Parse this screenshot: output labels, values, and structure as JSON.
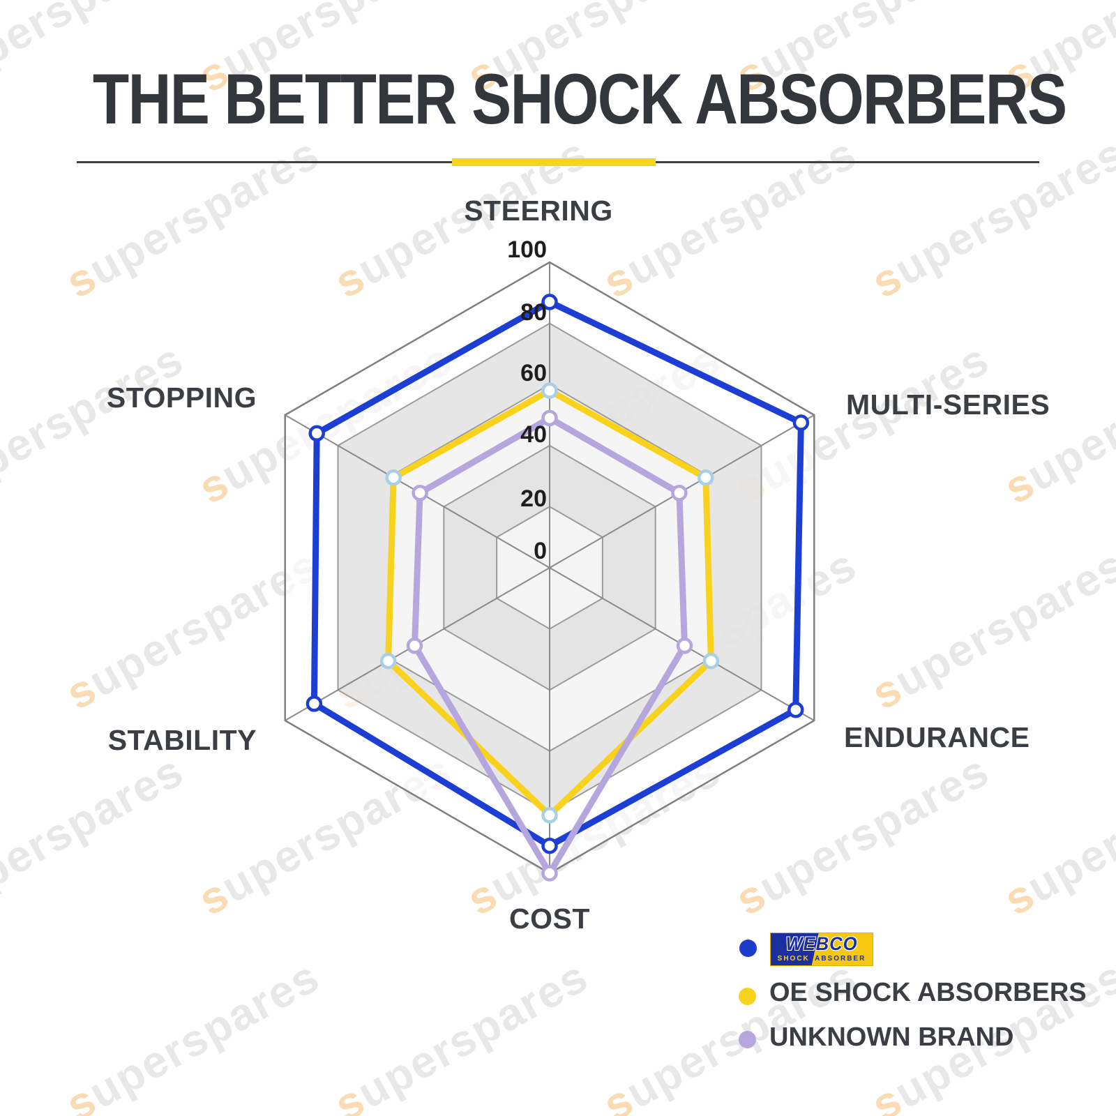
{
  "title": "THE BETTER SHOCK ABSORBERS",
  "watermark": {
    "text": "superspares"
  },
  "accent_color": "#f7d41f",
  "chart_data": {
    "type": "radar",
    "categories": [
      "STEERING",
      "MULTI-SERIES",
      "ENDURANCE",
      "COST",
      "STABILITY",
      "STOPPING"
    ],
    "tick_labels": [
      "100",
      "80",
      "60",
      "40",
      "20",
      "0"
    ],
    "ticks": [
      0,
      20,
      40,
      60,
      80,
      100
    ],
    "rlim": [
      0,
      100
    ],
    "grid": {
      "shape": "hexagon",
      "bands_alternating": true,
      "spokes": true
    },
    "legend_position": "bottom-right",
    "series": [
      {
        "name": "WEBCO SHOCK ABSORBER",
        "color": "#1d3ed3",
        "marker_color": "#1d3ed3",
        "values": [
          87,
          95,
          93,
          91,
          89,
          88
        ]
      },
      {
        "name": "OE SHOCK ABSORBERS",
        "color": "#f9d21d",
        "marker_color": "#a9cfe8",
        "values": [
          58,
          59,
          61,
          81,
          61,
          59
        ]
      },
      {
        "name": "UNKNOWN BRAND",
        "color": "#b5a7dd",
        "marker_color": "#b5a7dd",
        "values": [
          49,
          49,
          51,
          100,
          51,
          49
        ]
      }
    ]
  },
  "legend": {
    "items": [
      {
        "dot_color": "#1d3ccc",
        "logo_text": "WEBCO",
        "logo_sub1": "SHOCK",
        "logo_sub2": "ABSORBER"
      },
      {
        "dot_color": "#f9d21d",
        "label": "OE SHOCK ABSORBERS"
      },
      {
        "dot_color": "#b5a7dd",
        "label": "UNKNOWN BRAND"
      }
    ]
  }
}
